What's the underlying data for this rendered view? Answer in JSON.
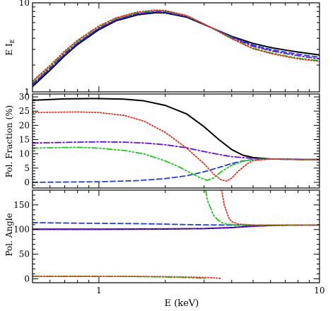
{
  "chart_data": [
    {
      "type": "line",
      "panel": "top",
      "ylabel": "E I",
      "ylabel_sub": "E",
      "xscale": "log",
      "yscale": "log",
      "xlim": [
        0.5,
        10
      ],
      "ylim": [
        1,
        10
      ],
      "yticks": [
        {
          "v": 1,
          "label": "1"
        },
        {
          "v": 10,
          "label": "10"
        }
      ],
      "series": [
        {
          "color": "#000000",
          "dash": "solid",
          "x": [
            0.5,
            0.6,
            0.7,
            0.8,
            1.0,
            1.2,
            1.5,
            1.8,
            2.0,
            2.5,
            3.0,
            4.0,
            5.0,
            6.0,
            7.0,
            8.0,
            10.0
          ],
          "y": [
            1.15,
            1.75,
            2.55,
            3.4,
            5.0,
            6.3,
            7.35,
            7.75,
            7.7,
            6.9,
            5.7,
            4.2,
            3.5,
            3.15,
            2.95,
            2.8,
            2.6
          ]
        },
        {
          "color": "#1f3fdc",
          "dash": "dashed",
          "x": [
            0.5,
            0.6,
            0.7,
            0.8,
            1.0,
            1.2,
            1.5,
            1.8,
            2.0,
            2.5,
            3.0,
            4.0,
            5.0,
            6.0,
            7.0,
            8.0,
            10.0
          ],
          "y": [
            1.2,
            1.82,
            2.65,
            3.5,
            5.15,
            6.45,
            7.5,
            7.9,
            7.85,
            7.0,
            5.75,
            4.15,
            3.35,
            3.0,
            2.8,
            2.65,
            2.45
          ]
        },
        {
          "color": "#6a0fd0",
          "dash": "dashdot",
          "x": [
            0.5,
            0.6,
            0.7,
            0.8,
            1.0,
            1.2,
            1.5,
            1.8,
            2.0,
            2.5,
            3.0,
            4.0,
            5.0,
            6.0,
            7.0,
            8.0,
            10.0
          ],
          "y": [
            1.22,
            1.85,
            2.7,
            3.55,
            5.2,
            6.5,
            7.6,
            8.0,
            7.95,
            7.05,
            5.75,
            4.1,
            3.25,
            2.9,
            2.7,
            2.55,
            2.35
          ]
        },
        {
          "color": "#1ec81e",
          "dash": "dashdotdot",
          "x": [
            0.5,
            0.6,
            0.7,
            0.8,
            1.0,
            1.2,
            1.5,
            1.8,
            2.0,
            2.5,
            3.0,
            4.0,
            5.0,
            6.0,
            7.0,
            8.0,
            10.0
          ],
          "y": [
            1.28,
            1.93,
            2.8,
            3.7,
            5.4,
            6.7,
            7.8,
            8.2,
            8.1,
            7.15,
            5.8,
            4.0,
            3.1,
            2.75,
            2.55,
            2.4,
            2.25
          ]
        },
        {
          "color": "#e0301c",
          "dash": "dotted",
          "x": [
            0.5,
            0.6,
            0.7,
            0.8,
            1.0,
            1.2,
            1.5,
            1.8,
            2.0,
            2.5,
            3.0,
            4.0,
            5.0,
            6.0,
            7.0,
            8.0,
            10.0
          ],
          "y": [
            1.32,
            1.98,
            2.88,
            3.8,
            5.5,
            6.8,
            7.9,
            8.3,
            8.2,
            7.2,
            5.8,
            3.95,
            3.05,
            2.7,
            2.5,
            2.35,
            2.2
          ]
        }
      ]
    },
    {
      "type": "line",
      "panel": "middle",
      "ylabel": "Pol. Fraction (%)",
      "xscale": "log",
      "xlim": [
        0.5,
        10
      ],
      "ylim": [
        -2,
        31
      ],
      "yticks": [
        {
          "v": 0,
          "label": "0"
        },
        {
          "v": 5,
          "label": "5"
        },
        {
          "v": 10,
          "label": "10"
        },
        {
          "v": 15,
          "label": "15"
        },
        {
          "v": 20,
          "label": "20"
        },
        {
          "v": 25,
          "label": "25"
        },
        {
          "v": 30,
          "label": "30"
        }
      ],
      "series": [
        {
          "color": "#000000",
          "dash": "solid",
          "x": [
            0.5,
            0.7,
            1.0,
            1.3,
            1.6,
            2.0,
            2.5,
            3.0,
            3.5,
            4.0,
            4.5,
            5.0,
            6.0,
            7.0,
            8.0,
            10.0
          ],
          "y": [
            28.8,
            29.3,
            29.4,
            29.2,
            28.6,
            27.0,
            24.0,
            19.5,
            15.0,
            11.5,
            9.5,
            8.7,
            8.2,
            8.1,
            8.0,
            8.0
          ]
        },
        {
          "color": "#1f3fdc",
          "dash": "dashed",
          "x": [
            0.5,
            1.0,
            1.5,
            2.0,
            2.5,
            3.0,
            3.5,
            4.0,
            4.5,
            5.0,
            6.0,
            7.0,
            8.0,
            10.0
          ],
          "y": [
            0.0,
            0.2,
            0.6,
            1.3,
            2.3,
            3.7,
            5.2,
            6.6,
            7.5,
            8.0,
            8.2,
            8.2,
            8.1,
            8.0
          ]
        },
        {
          "color": "#6a0fd0",
          "dash": "dashdot",
          "x": [
            0.5,
            0.8,
            1.0,
            1.3,
            1.6,
            2.0,
            2.5,
            3.0,
            3.5,
            4.0,
            5.0,
            6.0,
            7.0,
            8.0,
            10.0
          ],
          "y": [
            13.8,
            14.1,
            14.2,
            14.1,
            13.8,
            13.2,
            12.1,
            10.8,
            9.8,
            9.0,
            8.4,
            8.2,
            8.1,
            8.1,
            8.0
          ]
        },
        {
          "color": "#1ec81e",
          "dash": "dashdotdot",
          "x": [
            0.5,
            0.8,
            1.0,
            1.3,
            1.6,
            2.0,
            2.3,
            2.6,
            2.9,
            3.1,
            3.3,
            3.6,
            4.0,
            4.5,
            5.0,
            6.0,
            7.0,
            8.0,
            10.0
          ],
          "y": [
            12.0,
            12.3,
            12.0,
            11.2,
            10.0,
            7.5,
            5.5,
            3.3,
            1.5,
            0.7,
            1.5,
            3.8,
            6.0,
            7.4,
            8.0,
            8.2,
            8.1,
            8.0,
            8.0
          ]
        },
        {
          "color": "#e0301c",
          "dash": "dotted",
          "x": [
            0.5,
            0.8,
            1.0,
            1.3,
            1.6,
            2.0,
            2.5,
            3.0,
            3.3,
            3.6,
            3.8,
            4.0,
            4.3,
            4.7,
            5.0,
            6.0,
            7.0,
            8.0,
            10.0
          ],
          "y": [
            24.5,
            24.7,
            24.5,
            23.5,
            21.5,
            17.5,
            12.0,
            6.5,
            3.0,
            0.8,
            0.4,
            1.5,
            4.0,
            6.5,
            7.6,
            8.2,
            8.1,
            8.0,
            8.0
          ]
        }
      ]
    },
    {
      "type": "line",
      "panel": "bottom",
      "ylabel": "Pol. Angle",
      "xlabel": "E (keV)",
      "xscale": "log",
      "xlim": [
        0.5,
        10
      ],
      "ylim": [
        -8,
        180
      ],
      "yticks": [
        {
          "v": 0,
          "label": "0"
        },
        {
          "v": 50,
          "label": "50"
        },
        {
          "v": 100,
          "label": "100"
        },
        {
          "v": 150,
          "label": "150"
        }
      ],
      "xticks": [
        {
          "v": 1,
          "label": "1"
        },
        {
          "v": 10,
          "label": "10"
        }
      ],
      "series": [
        {
          "color": "#000000",
          "dash": "solid",
          "x": [
            0.5,
            1.0,
            2.0,
            3.0,
            4.0,
            5.0,
            6.0,
            7.0,
            10.0
          ],
          "y": [
            100.5,
            100.5,
            101.0,
            102.0,
            104.0,
            107.0,
            108.5,
            109.0,
            109.0
          ]
        },
        {
          "color": "#6a0fd0",
          "dash": "dashdot",
          "x": [
            0.5,
            1.0,
            2.0,
            3.0,
            4.0,
            5.0,
            6.0,
            7.0,
            10.0
          ],
          "y": [
            101.0,
            101.0,
            101.5,
            102.0,
            104.0,
            106.5,
            108.0,
            108.5,
            109.0
          ]
        },
        {
          "color": "#1f3fdc",
          "dash": "dashed",
          "x": [
            0.5,
            1.0,
            1.5,
            2.0,
            2.5,
            3.0,
            4.0,
            5.0,
            6.0,
            7.0,
            10.0
          ],
          "y": [
            114.0,
            112.5,
            112.0,
            111.0,
            110.0,
            109.5,
            109.0,
            109.0,
            109.0,
            109.0,
            109.0
          ]
        },
        {
          "color": "#1ec81e",
          "dash": "dashdotdot",
          "x": [
            3.05,
            3.1,
            3.2,
            3.3,
            3.45,
            3.6,
            3.8,
            4.0,
            4.5,
            5.0,
            6.0,
            10.0
          ],
          "y": [
            180.0,
            160.0,
            145.0,
            130.0,
            120.0,
            114.0,
            111.0,
            110.0,
            109.0,
            109.0,
            109.0,
            109.0
          ]
        },
        {
          "color": "#e0301c",
          "dash": "dotted",
          "x": [
            3.6,
            3.65,
            3.7,
            3.8,
            3.9,
            4.0,
            4.3,
            4.7,
            5.0,
            6.0,
            10.0
          ],
          "y": [
            180.0,
            165.0,
            150.0,
            135.0,
            122.0,
            116.0,
            111.0,
            110.0,
            109.0,
            109.0,
            109.0
          ]
        },
        {
          "color": "#1ec81e",
          "dash": "dashdotdot",
          "x": [
            0.5,
            1.0,
            1.5,
            2.0,
            2.5,
            2.9,
            3.05
          ],
          "y": [
            5.0,
            5.0,
            4.5,
            3.5,
            2.5,
            1.2,
            0.5
          ]
        },
        {
          "color": "#e0301c",
          "dash": "dotted",
          "x": [
            0.5,
            1.0,
            1.5,
            2.0,
            2.5,
            3.0,
            3.3,
            3.5,
            3.6
          ],
          "y": [
            5.0,
            5.0,
            4.8,
            4.3,
            3.5,
            2.8,
            2.0,
            1.0,
            0.3
          ]
        }
      ]
    }
  ]
}
